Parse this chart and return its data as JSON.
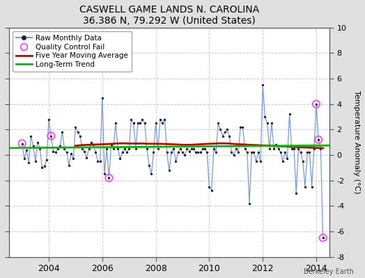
{
  "title": "CASWELL GAME LANDS N. CAROLINA",
  "subtitle": "36.386 N, 79.292 W (United States)",
  "ylabel": "Temperature Anomaly (°C)",
  "credit": "Berkeley Earth",
  "ylim": [
    -8,
    10
  ],
  "xlim": [
    2002.5,
    2014.5
  ],
  "yticks": [
    -8,
    -6,
    -4,
    -2,
    0,
    2,
    4,
    6,
    8,
    10
  ],
  "xticks": [
    2004,
    2006,
    2008,
    2010,
    2012,
    2014
  ],
  "fig_bg_color": "#e0e0e0",
  "plot_bg_color": "#ffffff",
  "raw_line_color": "#7799dd",
  "raw_dot_color": "#222222",
  "ma_color": "#cc0000",
  "trend_color": "#00bb00",
  "qc_color": "#ff44ff",
  "legend_items": [
    "Raw Monthly Data",
    "Quality Control Fail",
    "Five Year Moving Average",
    "Long-Term Trend"
  ],
  "monthly_data": [
    [
      2003.0,
      0.9
    ],
    [
      2003.0833,
      -0.3
    ],
    [
      2003.1667,
      0.4
    ],
    [
      2003.25,
      -0.6
    ],
    [
      2003.3333,
      1.5
    ],
    [
      2003.4167,
      0.7
    ],
    [
      2003.5,
      -0.5
    ],
    [
      2003.5833,
      1.0
    ],
    [
      2003.6667,
      0.5
    ],
    [
      2003.75,
      -1.0
    ],
    [
      2003.8333,
      -0.9
    ],
    [
      2003.9167,
      -0.4
    ],
    [
      2004.0,
      2.8
    ],
    [
      2004.0833,
      1.5
    ],
    [
      2004.1667,
      0.3
    ],
    [
      2004.25,
      0.2
    ],
    [
      2004.3333,
      0.5
    ],
    [
      2004.4167,
      0.7
    ],
    [
      2004.5,
      1.8
    ],
    [
      2004.5833,
      0.5
    ],
    [
      2004.6667,
      0.2
    ],
    [
      2004.75,
      -0.8
    ],
    [
      2004.8333,
      0.1
    ],
    [
      2004.9167,
      -0.3
    ],
    [
      2005.0,
      2.2
    ],
    [
      2005.0833,
      1.8
    ],
    [
      2005.1667,
      1.5
    ],
    [
      2005.25,
      0.5
    ],
    [
      2005.3333,
      0.3
    ],
    [
      2005.4167,
      -0.2
    ],
    [
      2005.5,
      0.5
    ],
    [
      2005.5833,
      1.0
    ],
    [
      2005.6667,
      0.8
    ],
    [
      2005.75,
      0.2
    ],
    [
      2005.8333,
      -0.5
    ],
    [
      2005.9167,
      -0.5
    ],
    [
      2006.0,
      4.5
    ],
    [
      2006.0833,
      -1.5
    ],
    [
      2006.1667,
      0.5
    ],
    [
      2006.25,
      -1.8
    ],
    [
      2006.3333,
      0.8
    ],
    [
      2006.4167,
      0.5
    ],
    [
      2006.5,
      2.5
    ],
    [
      2006.5833,
      0.5
    ],
    [
      2006.6667,
      -0.3
    ],
    [
      2006.75,
      0.2
    ],
    [
      2006.8333,
      0.5
    ],
    [
      2006.9167,
      0.2
    ],
    [
      2007.0,
      0.5
    ],
    [
      2007.0833,
      2.8
    ],
    [
      2007.1667,
      2.5
    ],
    [
      2007.25,
      0.5
    ],
    [
      2007.3333,
      2.5
    ],
    [
      2007.4167,
      2.5
    ],
    [
      2007.5,
      2.8
    ],
    [
      2007.5833,
      2.5
    ],
    [
      2007.6667,
      0.5
    ],
    [
      2007.75,
      -0.8
    ],
    [
      2007.8333,
      -1.5
    ],
    [
      2007.9167,
      0.2
    ],
    [
      2008.0,
      2.5
    ],
    [
      2008.0833,
      0.5
    ],
    [
      2008.1667,
      2.8
    ],
    [
      2008.25,
      2.5
    ],
    [
      2008.3333,
      2.8
    ],
    [
      2008.4167,
      0.2
    ],
    [
      2008.5,
      -1.2
    ],
    [
      2008.5833,
      0.2
    ],
    [
      2008.6667,
      0.5
    ],
    [
      2008.75,
      -0.5
    ],
    [
      2008.8333,
      0.2
    ],
    [
      2008.9167,
      0.5
    ],
    [
      2009.0,
      0.2
    ],
    [
      2009.0833,
      0.0
    ],
    [
      2009.1667,
      0.5
    ],
    [
      2009.25,
      0.3
    ],
    [
      2009.3333,
      0.5
    ],
    [
      2009.4167,
      0.5
    ],
    [
      2009.5,
      0.2
    ],
    [
      2009.5833,
      0.2
    ],
    [
      2009.6667,
      0.2
    ],
    [
      2009.75,
      0.5
    ],
    [
      2009.8333,
      0.5
    ],
    [
      2009.9167,
      0.2
    ],
    [
      2010.0,
      -2.5
    ],
    [
      2010.0833,
      -2.8
    ],
    [
      2010.1667,
      0.5
    ],
    [
      2010.25,
      0.2
    ],
    [
      2010.3333,
      2.5
    ],
    [
      2010.4167,
      2.0
    ],
    [
      2010.5,
      1.5
    ],
    [
      2010.5833,
      1.8
    ],
    [
      2010.6667,
      2.0
    ],
    [
      2010.75,
      1.5
    ],
    [
      2010.8333,
      0.2
    ],
    [
      2010.9167,
      0.0
    ],
    [
      2011.0,
      0.5
    ],
    [
      2011.0833,
      0.2
    ],
    [
      2011.1667,
      2.2
    ],
    [
      2011.25,
      2.2
    ],
    [
      2011.3333,
      0.5
    ],
    [
      2011.4167,
      0.2
    ],
    [
      2011.5,
      -3.8
    ],
    [
      2011.5833,
      0.2
    ],
    [
      2011.6667,
      0.2
    ],
    [
      2011.75,
      -0.5
    ],
    [
      2011.8333,
      0.2
    ],
    [
      2011.9167,
      -0.5
    ],
    [
      2012.0,
      5.5
    ],
    [
      2012.0833,
      3.0
    ],
    [
      2012.1667,
      2.5
    ],
    [
      2012.25,
      0.5
    ],
    [
      2012.3333,
      2.5
    ],
    [
      2012.4167,
      0.5
    ],
    [
      2012.5,
      0.8
    ],
    [
      2012.5833,
      0.5
    ],
    [
      2012.6667,
      0.2
    ],
    [
      2012.75,
      -0.5
    ],
    [
      2012.8333,
      0.2
    ],
    [
      2012.9167,
      -0.3
    ],
    [
      2013.0,
      3.2
    ],
    [
      2013.0833,
      0.5
    ],
    [
      2013.1667,
      0.5
    ],
    [
      2013.25,
      -3.0
    ],
    [
      2013.3333,
      0.5
    ],
    [
      2013.4167,
      0.2
    ],
    [
      2013.5,
      -0.5
    ],
    [
      2013.5833,
      -2.5
    ],
    [
      2013.6667,
      0.2
    ],
    [
      2013.75,
      0.2
    ],
    [
      2013.8333,
      -2.5
    ],
    [
      2013.9167,
      0.5
    ],
    [
      2014.0,
      4.0
    ],
    [
      2014.0833,
      1.2
    ],
    [
      2014.1667,
      0.5
    ],
    [
      2014.25,
      -6.5
    ]
  ],
  "qc_fail_points": [
    [
      2003.0,
      0.9
    ],
    [
      2004.0833,
      1.5
    ],
    [
      2006.25,
      -1.8
    ],
    [
      2014.0,
      4.0
    ],
    [
      2014.0833,
      1.2
    ],
    [
      2014.25,
      -6.5
    ]
  ],
  "moving_avg": [
    [
      2005.0,
      0.72
    ],
    [
      2005.25,
      0.78
    ],
    [
      2005.5,
      0.8
    ],
    [
      2005.75,
      0.82
    ],
    [
      2006.0,
      0.84
    ],
    [
      2006.25,
      0.86
    ],
    [
      2006.5,
      0.9
    ],
    [
      2006.75,
      0.92
    ],
    [
      2007.0,
      0.9
    ],
    [
      2007.25,
      0.9
    ],
    [
      2007.5,
      0.9
    ],
    [
      2007.75,
      0.88
    ],
    [
      2008.0,
      0.88
    ],
    [
      2008.25,
      0.87
    ],
    [
      2008.5,
      0.85
    ],
    [
      2008.75,
      0.83
    ],
    [
      2009.0,
      0.8
    ],
    [
      2009.25,
      0.8
    ],
    [
      2009.5,
      0.82
    ],
    [
      2009.75,
      0.85
    ],
    [
      2010.0,
      0.88
    ],
    [
      2010.25,
      0.9
    ],
    [
      2010.5,
      0.92
    ],
    [
      2010.75,
      0.9
    ],
    [
      2011.0,
      0.85
    ],
    [
      2011.25,
      0.83
    ],
    [
      2011.5,
      0.8
    ],
    [
      2011.75,
      0.78
    ],
    [
      2012.0,
      0.75
    ],
    [
      2012.25,
      0.73
    ],
    [
      2012.5,
      0.7
    ],
    [
      2012.75,
      0.68
    ],
    [
      2013.0,
      0.65
    ],
    [
      2013.25,
      0.63
    ],
    [
      2013.5,
      0.6
    ],
    [
      2013.75,
      0.58
    ],
    [
      2014.0,
      0.56
    ],
    [
      2014.25,
      0.54
    ]
  ],
  "trend_x": [
    2002.5,
    2014.5
  ],
  "trend_y": [
    0.55,
    0.75
  ]
}
